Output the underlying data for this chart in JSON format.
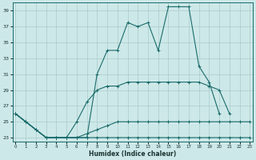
{
  "xlabel": "Humidex (Indice chaleur)",
  "bg_color": "#cde8e8",
  "line_color": "#1a6b6b",
  "grid_color": "#aacccc",
  "x": [
    0,
    1,
    2,
    3,
    4,
    5,
    6,
    7,
    8,
    9,
    10,
    11,
    12,
    13,
    14,
    15,
    16,
    17,
    18,
    19,
    20,
    21,
    22,
    23
  ],
  "series": [
    {
      "y": [
        26,
        25,
        24,
        23,
        23,
        23,
        23,
        23,
        31,
        34,
        34,
        37.5,
        37,
        37.5,
        34,
        39.5,
        39.5,
        39.5,
        32,
        30,
        26,
        null,
        null,
        null
      ]
    },
    {
      "y": [
        26,
        25,
        24,
        23,
        23,
        23,
        25,
        27.5,
        29,
        29.5,
        29.5,
        30,
        30,
        30,
        30,
        30,
        30,
        30,
        30,
        29.5,
        29,
        26,
        null,
        null
      ]
    },
    {
      "y": [
        26,
        25,
        24,
        23,
        23,
        23,
        23,
        23.5,
        24,
        24.5,
        25,
        25,
        25,
        25,
        25,
        25,
        25,
        25,
        25,
        25,
        25,
        25,
        25,
        25
      ]
    },
    {
      "y": [
        26,
        25,
        24,
        23,
        23,
        23,
        23,
        23,
        23,
        23,
        23,
        23,
        23,
        23,
        23,
        23,
        23,
        23,
        23,
        23,
        23,
        23,
        23,
        23
      ]
    }
  ],
  "ylim": [
    22.5,
    40
  ],
  "xlim": [
    -0.3,
    23.3
  ],
  "yticks": [
    23,
    25,
    27,
    29,
    31,
    33,
    35,
    37,
    39
  ],
  "xticks": [
    0,
    1,
    2,
    3,
    4,
    5,
    6,
    7,
    8,
    9,
    10,
    11,
    12,
    13,
    14,
    15,
    16,
    17,
    18,
    19,
    20,
    21,
    22,
    23
  ]
}
